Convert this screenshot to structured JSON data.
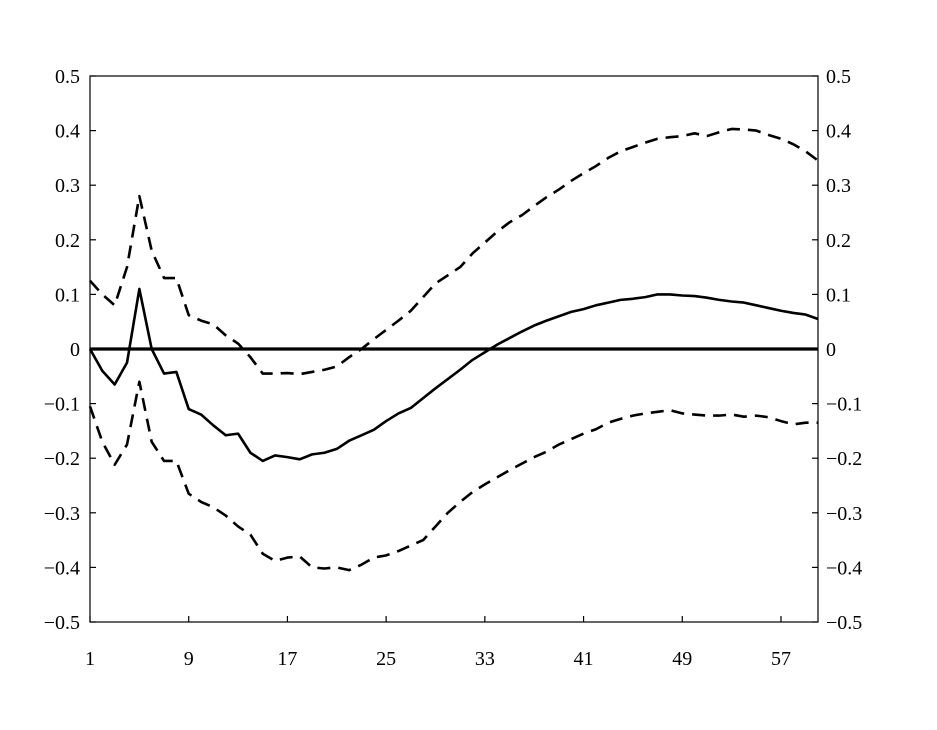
{
  "chart_data": {
    "type": "line",
    "title": "",
    "xlabel": "",
    "ylabel": "",
    "xlim": [
      1,
      60
    ],
    "ylim": [
      -0.5,
      0.5
    ],
    "x_ticks": [
      1,
      9,
      17,
      25,
      33,
      41,
      49,
      57
    ],
    "x_tick_labels": [
      "1",
      "9",
      "17",
      "25",
      "33",
      "41",
      "49",
      "57"
    ],
    "y_ticks": [
      -0.5,
      -0.4,
      -0.3,
      -0.2,
      -0.1,
      0,
      0.1,
      0.2,
      0.3,
      0.4,
      0.5
    ],
    "y_tick_labels": [
      "−0.5",
      "−0.4",
      "−0.3",
      "−0.2",
      "−0.1",
      "0",
      "0.1",
      "0.2",
      "0.3",
      "0.4",
      "0.5"
    ],
    "right_axis_mirror": true,
    "grid": false,
    "legend": "none",
    "zero_line": 0,
    "x": [
      1,
      2,
      3,
      4,
      5,
      6,
      7,
      8,
      9,
      10,
      11,
      12,
      13,
      14,
      15,
      16,
      17,
      18,
      19,
      20,
      21,
      22,
      23,
      24,
      25,
      26,
      27,
      28,
      29,
      30,
      31,
      32,
      33,
      34,
      35,
      36,
      37,
      38,
      39,
      40,
      41,
      42,
      43,
      44,
      45,
      46,
      47,
      48,
      49,
      50,
      51,
      52,
      53,
      54,
      55,
      56,
      57,
      58,
      59,
      60
    ],
    "series": [
      {
        "style": "solid",
        "values": [
          0.0,
          -0.04,
          -0.065,
          -0.025,
          0.11,
          0.0,
          -0.045,
          -0.042,
          -0.11,
          -0.12,
          -0.14,
          -0.158,
          -0.155,
          -0.19,
          -0.205,
          -0.195,
          -0.198,
          -0.202,
          -0.193,
          -0.19,
          -0.183,
          -0.168,
          -0.158,
          -0.148,
          -0.132,
          -0.118,
          -0.108,
          -0.09,
          -0.072,
          -0.055,
          -0.038,
          -0.02,
          -0.006,
          0.008,
          0.02,
          0.032,
          0.043,
          0.052,
          0.06,
          0.068,
          0.073,
          0.08,
          0.085,
          0.09,
          0.092,
          0.095,
          0.1,
          0.1,
          0.098,
          0.097,
          0.094,
          0.09,
          0.087,
          0.085,
          0.08,
          0.075,
          0.07,
          0.066,
          0.063,
          0.055
        ]
      },
      {
        "style": "dashed",
        "values": [
          0.125,
          0.1,
          0.08,
          0.15,
          0.28,
          0.18,
          0.13,
          0.13,
          0.062,
          0.052,
          0.045,
          0.025,
          0.01,
          -0.015,
          -0.045,
          -0.045,
          -0.044,
          -0.046,
          -0.042,
          -0.038,
          -0.032,
          -0.015,
          0.0,
          0.018,
          0.035,
          0.052,
          0.07,
          0.095,
          0.12,
          0.135,
          0.15,
          0.175,
          0.195,
          0.215,
          0.232,
          0.245,
          0.262,
          0.278,
          0.292,
          0.308,
          0.322,
          0.335,
          0.35,
          0.362,
          0.37,
          0.378,
          0.385,
          0.388,
          0.39,
          0.395,
          0.39,
          0.397,
          0.403,
          0.402,
          0.4,
          0.392,
          0.385,
          0.375,
          0.362,
          0.345
        ]
      },
      {
        "style": "dashed",
        "values": [
          -0.105,
          -0.17,
          -0.212,
          -0.175,
          -0.06,
          -0.17,
          -0.205,
          -0.205,
          -0.265,
          -0.28,
          -0.29,
          -0.305,
          -0.325,
          -0.34,
          -0.375,
          -0.388,
          -0.382,
          -0.38,
          -0.4,
          -0.402,
          -0.4,
          -0.405,
          -0.395,
          -0.382,
          -0.378,
          -0.37,
          -0.36,
          -0.35,
          -0.325,
          -0.3,
          -0.28,
          -0.262,
          -0.248,
          -0.235,
          -0.222,
          -0.21,
          -0.198,
          -0.188,
          -0.175,
          -0.165,
          -0.155,
          -0.147,
          -0.135,
          -0.128,
          -0.122,
          -0.118,
          -0.115,
          -0.112,
          -0.118,
          -0.12,
          -0.122,
          -0.122,
          -0.12,
          -0.124,
          -0.122,
          -0.125,
          -0.132,
          -0.138,
          -0.135,
          -0.135
        ]
      }
    ]
  }
}
